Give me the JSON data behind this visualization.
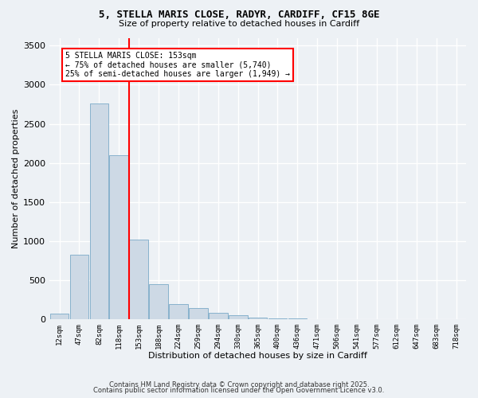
{
  "title_line1": "5, STELLA MARIS CLOSE, RADYR, CARDIFF, CF15 8GE",
  "title_line2": "Size of property relative to detached houses in Cardiff",
  "xlabel": "Distribution of detached houses by size in Cardiff",
  "ylabel": "Number of detached properties",
  "bar_color": "#cdd9e5",
  "bar_edge_color": "#7aaac8",
  "vline_color": "red",
  "categories": [
    "12sqm",
    "47sqm",
    "82sqm",
    "118sqm",
    "153sqm",
    "188sqm",
    "224sqm",
    "259sqm",
    "294sqm",
    "330sqm",
    "365sqm",
    "400sqm",
    "436sqm",
    "471sqm",
    "506sqm",
    "541sqm",
    "577sqm",
    "612sqm",
    "647sqm",
    "683sqm",
    "718sqm"
  ],
  "values": [
    75,
    830,
    2760,
    2100,
    1020,
    455,
    195,
    145,
    80,
    55,
    25,
    15,
    8,
    5,
    2,
    1,
    0,
    0,
    0,
    0,
    0
  ],
  "ylim": [
    0,
    3600
  ],
  "yticks": [
    0,
    500,
    1000,
    1500,
    2000,
    2500,
    3000,
    3500
  ],
  "vline_idx": 4,
  "annotation_title": "5 STELLA MARIS CLOSE: 153sqm",
  "annotation_line1": "← 75% of detached houses are smaller (5,740)",
  "annotation_line2": "25% of semi-detached houses are larger (1,949) →",
  "background_color": "#edf1f5",
  "grid_color": "white",
  "footer_line1": "Contains HM Land Registry data © Crown copyright and database right 2025.",
  "footer_line2": "Contains public sector information licensed under the Open Government Licence v3.0."
}
